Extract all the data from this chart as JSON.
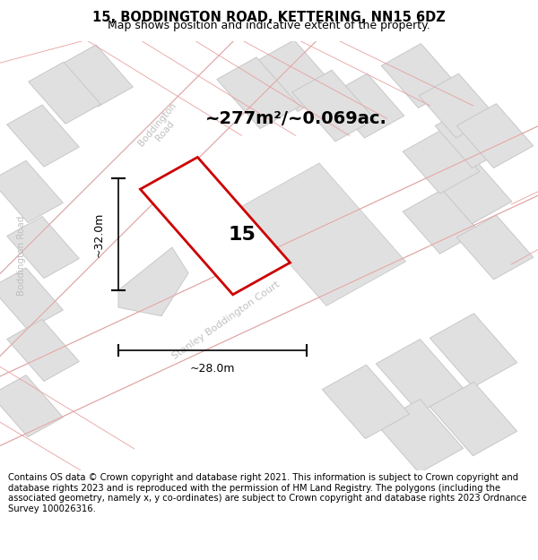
{
  "title": "15, BODDINGTON ROAD, KETTERING, NN15 6DZ",
  "subtitle": "Map shows position and indicative extent of the property.",
  "footer": "Contains OS data © Crown copyright and database right 2021. This information is subject to Crown copyright and database rights 2023 and is reproduced with the permission of HM Land Registry. The polygons (including the associated geometry, namely x, y co-ordinates) are subject to Crown copyright and database rights 2023 Ordnance Survey 100026316.",
  "area_text": "~277m²/~0.069ac.",
  "label_15": "15",
  "dim_width": "~28.0m",
  "dim_height": "~32.0m",
  "map_bg": "#ececec",
  "road_fill": "#ffffff",
  "road_stroke": "#d8d8d8",
  "building_fill": "#e0e0e0",
  "building_stroke": "#c8c8c8",
  "red_stroke": "#cc0000",
  "pink_color": "#e8a0a0",
  "road_label_color": "#c0c0c0",
  "title_fontsize": 10.5,
  "subtitle_fontsize": 9,
  "footer_fontsize": 7.2,
  "area_fontsize": 14,
  "label_fontsize": 16,
  "dim_fontsize": 9
}
